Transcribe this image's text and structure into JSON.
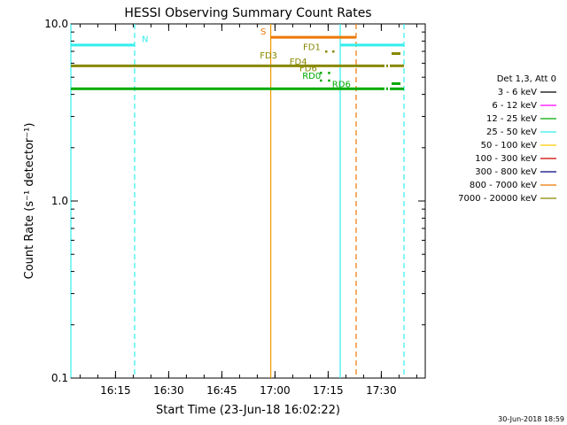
{
  "chart_data": {
    "type": "line",
    "title": "HESSI Observing Summary Count Rates",
    "ylabel": "Count Rate (s⁻¹ detector⁻¹)",
    "xlabel": "Start Time (23-Jun-18 16:02:22)",
    "ylim": [
      0.1,
      10.0
    ],
    "y_scale": "log",
    "y_ticks": [
      "0.1",
      "1.0",
      "10.0"
    ],
    "x_range_minutes": [
      0,
      100
    ],
    "x_ticks": [
      {
        "label": "16:15",
        "minute": 12.6
      },
      {
        "label": "16:30",
        "minute": 27.6
      },
      {
        "label": "16:45",
        "minute": 42.6
      },
      {
        "label": "17:00",
        "minute": 57.6
      },
      {
        "label": "17:15",
        "minute": 72.6
      },
      {
        "label": "17:30",
        "minute": 87.6
      }
    ],
    "series": [
      {
        "name": "3 - 6 keV",
        "color": "#000000",
        "segments": []
      },
      {
        "name": "6 - 12 keV",
        "color": "#ff00ff",
        "segments": []
      },
      {
        "name": "12 - 25 keV",
        "color": "#00aa00",
        "segments": [
          [
            0,
            88,
            4.3
          ],
          [
            90,
            94,
            4.3
          ]
        ],
        "dashed": [
          [
            88,
            90,
            4.3
          ]
        ],
        "stub": [
          [
            90.5,
            93,
            4.6
          ]
        ]
      },
      {
        "name": "25 - 50 keV",
        "color": "#33eeee",
        "segments": [
          [
            0,
            18,
            7.6
          ],
          [
            76,
            94,
            7.6
          ]
        ]
      },
      {
        "name": "50 - 100 keV",
        "color": "#ffcc00",
        "segments": []
      },
      {
        "name": "100 - 300 keV",
        "color": "#cc0000",
        "segments": []
      },
      {
        "name": "300 - 800 keV",
        "color": "#000080",
        "segments": []
      },
      {
        "name": "800 - 7000 keV",
        "color": "#ee7700",
        "segments": [
          [
            56.4,
            80.5,
            8.4
          ]
        ]
      },
      {
        "name": "7000 - 20000 keV",
        "color": "#888800",
        "segments": [
          [
            0,
            88,
            5.8
          ],
          [
            90,
            94,
            5.8
          ]
        ],
        "dashed": [
          [
            88,
            90,
            5.8
          ]
        ],
        "stub": [
          [
            90.5,
            93,
            6.8
          ]
        ]
      }
    ],
    "legend": {
      "title": "Det 1,3, Att 0",
      "position": "right"
    },
    "vertical_lines": [
      {
        "minute": 0,
        "color": "#33eeee",
        "style": "solid"
      },
      {
        "minute": 18,
        "color": "#33eeee",
        "style": "dashed"
      },
      {
        "minute": 56.4,
        "color": "#ee9900",
        "style": "solid"
      },
      {
        "minute": 76,
        "color": "#33eeee",
        "style": "solid"
      },
      {
        "minute": 80.5,
        "color": "#ee7700",
        "style": "dashed"
      },
      {
        "minute": 94,
        "color": "#33eeee",
        "style": "dashed"
      }
    ],
    "annotations": [
      {
        "text": "N",
        "minute": 20,
        "value": 7.9,
        "color": "#33eeee"
      },
      {
        "text": "S",
        "minute": 53.5,
        "value": 8.7,
        "color": "#ee7700"
      },
      {
        "text": "FD1",
        "minute": 65.5,
        "value": 7.1,
        "color": "#888800"
      },
      {
        "text": "FD3",
        "minute": 53.3,
        "value": 6.4,
        "color": "#888800"
      },
      {
        "text": "FD4",
        "minute": 61.7,
        "value": 5.9,
        "color": "#888800"
      },
      {
        "text": "FD6",
        "minute": 64.5,
        "value": 5.4,
        "color": "#888800"
      },
      {
        "text": "RD0",
        "minute": 65.3,
        "value": 4.9,
        "color": "#00aa00"
      },
      {
        "text": "RD6",
        "minute": 73.7,
        "value": 4.4,
        "color": "#00aa00"
      }
    ],
    "dots": [
      {
        "minute": 72.0,
        "value": 7.0,
        "color": "#888800"
      },
      {
        "minute": 74.0,
        "value": 7.0,
        "color": "#888800"
      },
      {
        "minute": 70.5,
        "value": 5.3,
        "color": "#00aa00"
      },
      {
        "minute": 72.8,
        "value": 5.3,
        "color": "#00aa00"
      },
      {
        "minute": 70.5,
        "value": 4.8,
        "color": "#00aa00"
      },
      {
        "minute": 72.8,
        "value": 4.8,
        "color": "#00aa00"
      }
    ]
  },
  "footer": {
    "timestamp": "30-Jun-2018 18:59"
  }
}
